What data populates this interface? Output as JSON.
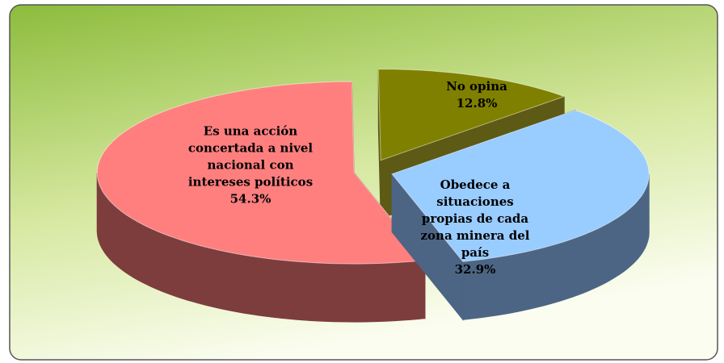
{
  "chart_data": {
    "type": "pie3d",
    "categories": [
      "Es una acción concertada a nivel nacional con intereses políticos",
      "No opina",
      "Obedece a situaciones propias de cada zona minera del país"
    ],
    "values": [
      54.3,
      12.8,
      32.9
    ],
    "value_labels": [
      "54.3%",
      "12.8%",
      "32.9%"
    ],
    "colors": [
      "#ff7f7f",
      "#808000",
      "#99ccff"
    ],
    "side_colors": [
      "#7d3d3d",
      "#5c5a14",
      "#4d6584"
    ]
  }
}
